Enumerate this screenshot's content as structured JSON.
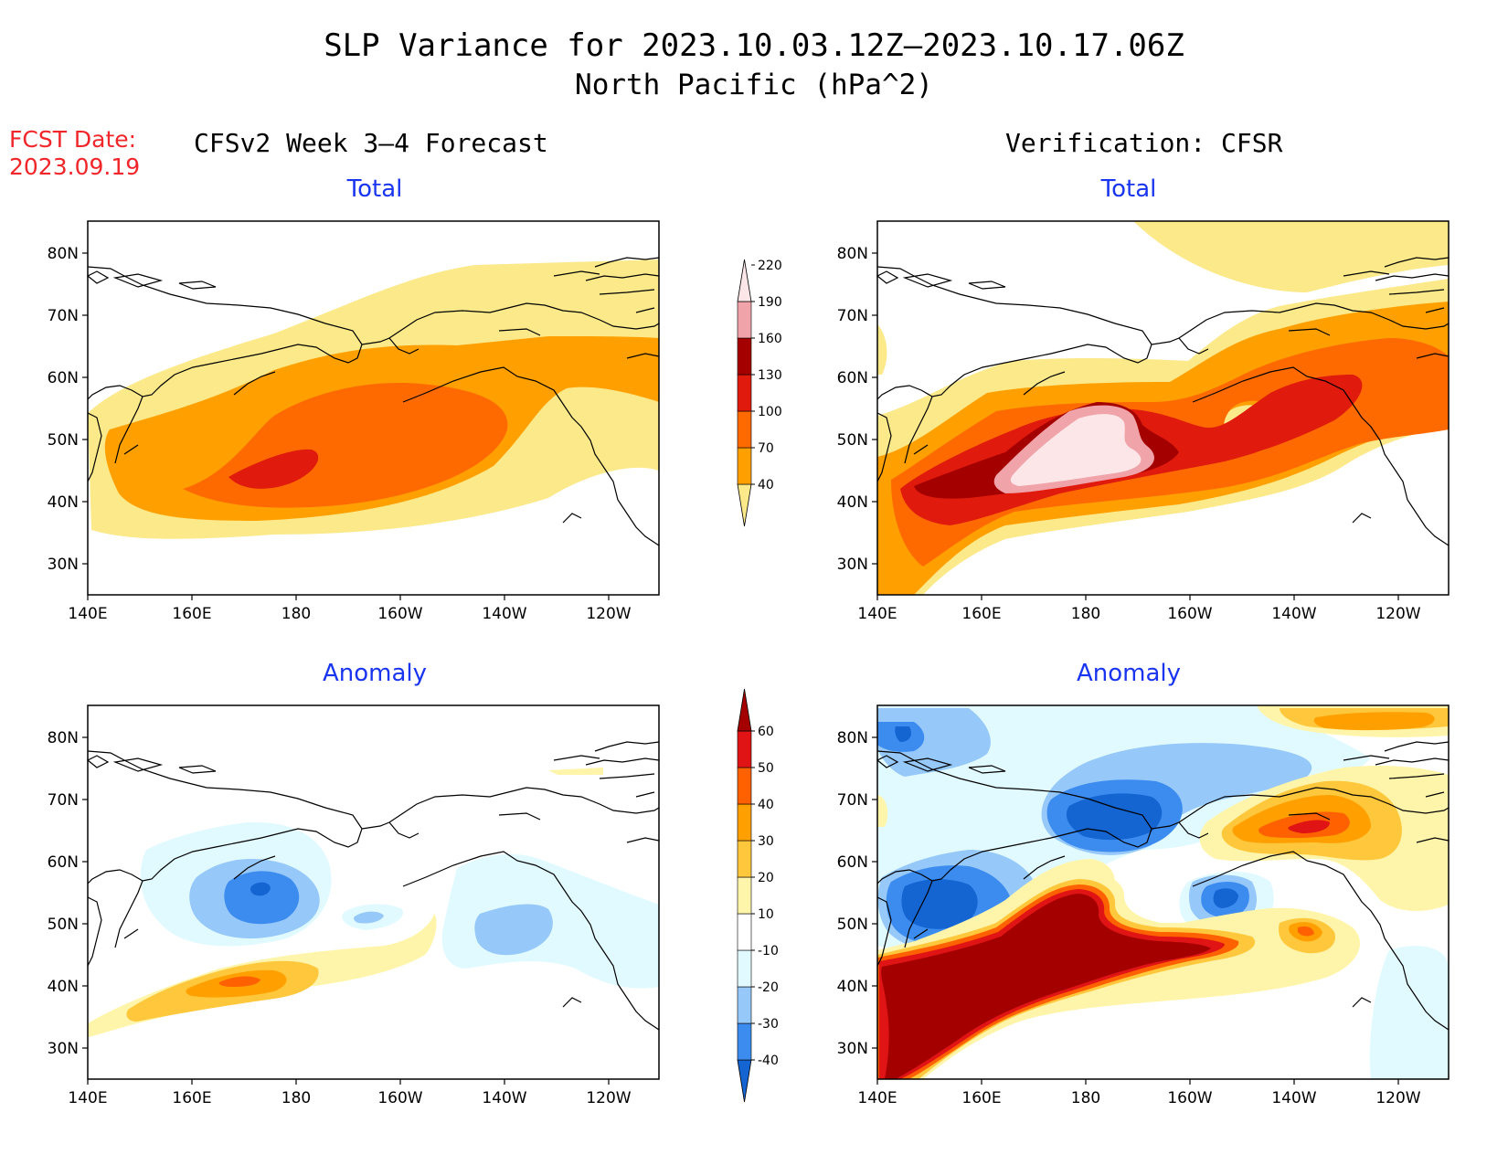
{
  "title": {
    "line1": "SLP Variance for 2023.10.03.12Z–2023.10.17.06Z",
    "line2": "North Pacific (hPa^2)"
  },
  "fcst": {
    "line1": "FCST Date:",
    "line2": "2023.09.19"
  },
  "left_header": "CFSv2 Week 3–4 Forecast",
  "right_header": "Verification: CFSR",
  "panel_titles": {
    "total": "Total",
    "anomaly": "Anomaly"
  },
  "axes": {
    "lat_labels": [
      "80N",
      "70N",
      "60N",
      "50N",
      "40N",
      "30N"
    ],
    "lon_labels": [
      "140E",
      "160E",
      "180",
      "160W",
      "140W",
      "120W"
    ]
  },
  "colorbars": {
    "total": {
      "levels": [
        "40",
        "70",
        "100",
        "130",
        "160",
        "190",
        "220"
      ],
      "colors": [
        "#fbe98a",
        "#ffa000",
        "#ff6a00",
        "#e01a0c",
        "#a50000",
        "#f0a3a8",
        "#fce6e8"
      ]
    },
    "anomaly": {
      "levels": [
        "-40",
        "-30",
        "-20",
        "-10",
        "10",
        "20",
        "30",
        "40",
        "50",
        "60"
      ],
      "colors": [
        "#1464d2",
        "#3c8cf0",
        "#96c8fa",
        "#e1faff",
        "#ffffff",
        "#fff5aa",
        "#ffc83c",
        "#ffa000",
        "#ff6000",
        "#e01414",
        "#a50000"
      ]
    }
  },
  "palette": {
    "t40": "#fbe98a",
    "t70": "#ffa000",
    "t100": "#ff6a00",
    "t130": "#e01a0c",
    "t160": "#a50000",
    "t190": "#f0a3a8",
    "t220": "#fce6e8",
    "a_n40": "#1464d2",
    "a_n30": "#3c8cf0",
    "a_n20": "#96c8fa",
    "a_n10": "#e1faff",
    "a_p10": "#fff5aa",
    "a_p20": "#ffc83c",
    "a_p30": "#ffa000",
    "a_p40": "#ff6000",
    "a_p50": "#e01414",
    "a_p60": "#a50000"
  }
}
